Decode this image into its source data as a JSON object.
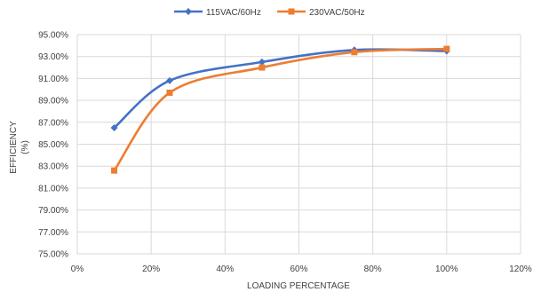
{
  "chart_data": {
    "type": "line",
    "title": "",
    "xlabel": "LOADING PERCENTAGE",
    "ylabel_lines": [
      "EFFICIENCY",
      "(%)"
    ],
    "xlim": [
      0,
      120
    ],
    "ylim": [
      75,
      95
    ],
    "x_ticks": [
      0,
      20,
      40,
      60,
      80,
      100,
      120
    ],
    "x_tick_labels": [
      "0%",
      "20%",
      "40%",
      "60%",
      "80%",
      "100%",
      "120%"
    ],
    "y_ticks": [
      75,
      77,
      79,
      81,
      83,
      85,
      87,
      89,
      91,
      93,
      95
    ],
    "y_tick_labels": [
      "75.00%",
      "77.00%",
      "79.00%",
      "81.00%",
      "83.00%",
      "85.00%",
      "87.00%",
      "89.00%",
      "91.00%",
      "93.00%",
      "95.00%"
    ],
    "grid": "major gridlines on both axes",
    "legend_position": "top",
    "smooth": true,
    "series": [
      {
        "name": "115VAC/60Hz",
        "color": "#4472c4",
        "marker": "diamond",
        "x": [
          10,
          25,
          50,
          75,
          100
        ],
        "y": [
          86.5,
          90.8,
          92.5,
          93.6,
          93.5
        ]
      },
      {
        "name": "230VAC/50Hz",
        "color": "#ed7d31",
        "marker": "square",
        "x": [
          10,
          25,
          50,
          75,
          100
        ],
        "y": [
          82.6,
          89.7,
          92.0,
          93.4,
          93.7
        ]
      }
    ]
  }
}
